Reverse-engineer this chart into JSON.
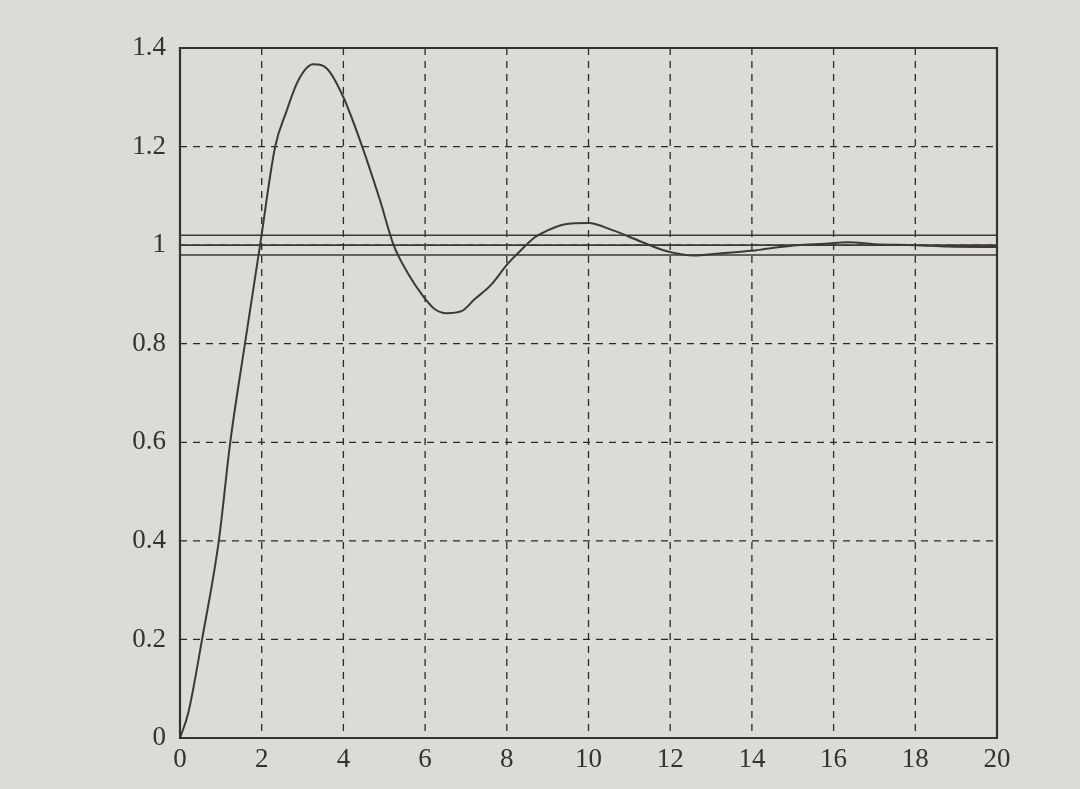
{
  "chart_data": {
    "type": "line",
    "x": [
      0,
      0.2,
      0.54,
      0.95,
      1.23,
      1.59,
      1.96,
      2.33,
      2.6,
      2.9,
      3.26,
      3.6,
      4.0,
      4.46,
      4.9,
      5.23,
      5.6,
      5.92,
      6.24,
      6.53,
      6.89,
      7.21,
      7.62,
      8.02,
      8.35,
      8.67,
      9.0,
      9.4,
      10.0,
      10.6,
      11.26,
      11.9,
      12.56,
      13.2,
      13.9,
      14.5,
      15.1,
      15.8,
      16.35,
      17.0,
      18.0,
      18.8,
      20
    ],
    "series": [
      {
        "color": "#3a3a3a",
        "values": [
          0,
          0.05,
          0.2,
          0.4,
          0.6,
          0.8,
          1.0,
          1.2,
          1.27,
          1.335,
          1.367,
          1.358,
          1.3,
          1.2,
          1.09,
          1.0,
          0.94,
          0.9,
          0.87,
          0.862,
          0.866,
          0.89,
          0.92,
          0.962,
          0.99,
          1.015,
          1.03,
          1.042,
          1.045,
          1.03,
          1.008,
          0.988,
          0.979,
          0.983,
          0.988,
          0.994,
          1.0,
          1.003,
          1.006,
          1.002,
          1.0,
          0.997,
          0.996
        ]
      }
    ],
    "xlim": [
      0,
      20
    ],
    "xticks": [
      0,
      2,
      4,
      6,
      8,
      10,
      12,
      14,
      16,
      18,
      20
    ],
    "ylim": [
      0,
      1.4
    ],
    "yticks": [
      0,
      0.2,
      0.4,
      0.6,
      0.8,
      1,
      1.2,
      1.4
    ],
    "grid": true,
    "marker": "none",
    "line_style": "solid",
    "ref_lines": [
      {
        "axis": "y",
        "value": 1.02,
        "color": "#3a3a3a"
      },
      {
        "axis": "y",
        "value": 1,
        "color": "#3a3a3a"
      },
      {
        "axis": "y",
        "value": 0.98,
        "color": "#3a3a3a"
      }
    ]
  }
}
